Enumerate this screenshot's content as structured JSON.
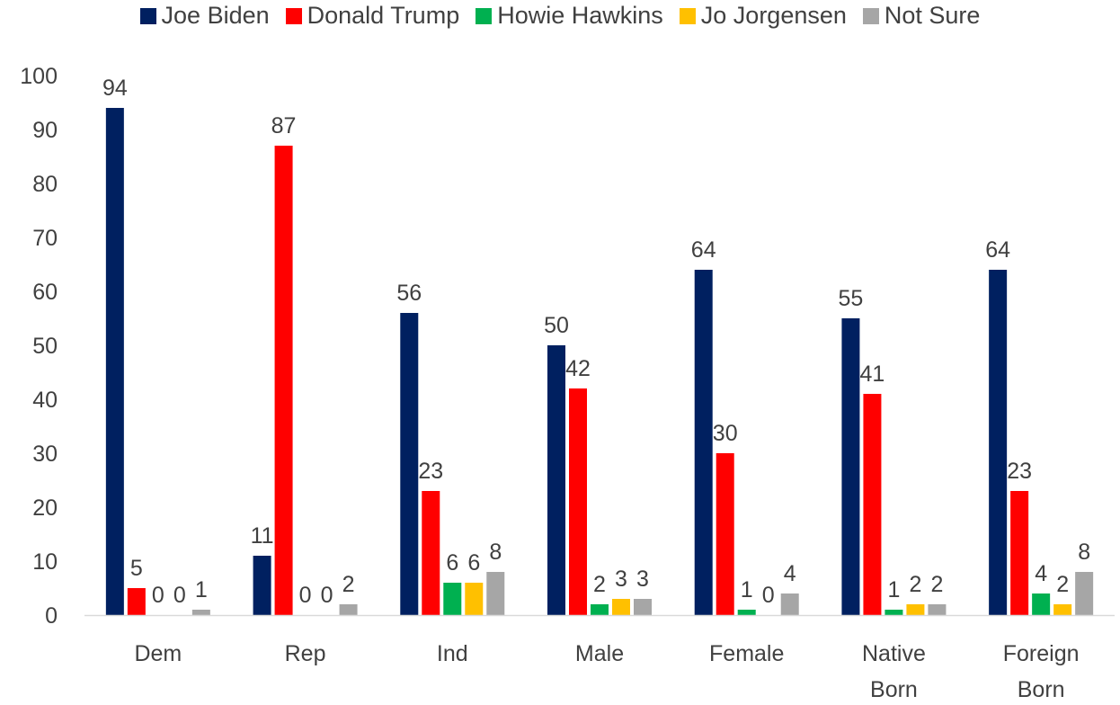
{
  "chart_data": {
    "type": "bar",
    "title": "",
    "xlabel": "",
    "ylabel": "",
    "ylim": [
      0,
      100
    ],
    "yticks": [
      0,
      10,
      20,
      30,
      40,
      50,
      60,
      70,
      80,
      90,
      100
    ],
    "grid": false,
    "legend_position": "top",
    "categories": [
      [
        "Dem"
      ],
      [
        "Rep"
      ],
      [
        "Ind"
      ],
      [
        "Male"
      ],
      [
        "Female"
      ],
      [
        "Native",
        "Born"
      ],
      [
        "Foreign",
        "Born"
      ]
    ],
    "series": [
      {
        "name": "Joe Biden",
        "color": "#002060",
        "values": [
          94,
          11,
          56,
          50,
          64,
          55,
          64
        ]
      },
      {
        "name": "Donald Trump",
        "color": "#FF0000",
        "values": [
          5,
          87,
          23,
          42,
          30,
          41,
          23
        ]
      },
      {
        "name": "Howie Hawkins",
        "color": "#00B050",
        "values": [
          0,
          0,
          6,
          2,
          1,
          1,
          4
        ]
      },
      {
        "name": "Jo Jorgensen",
        "color": "#FFC000",
        "values": [
          0,
          0,
          6,
          3,
          0,
          2,
          2
        ]
      },
      {
        "name": "Not Sure",
        "color": "#A6A6A6",
        "values": [
          1,
          2,
          8,
          3,
          4,
          2,
          8
        ]
      }
    ]
  }
}
